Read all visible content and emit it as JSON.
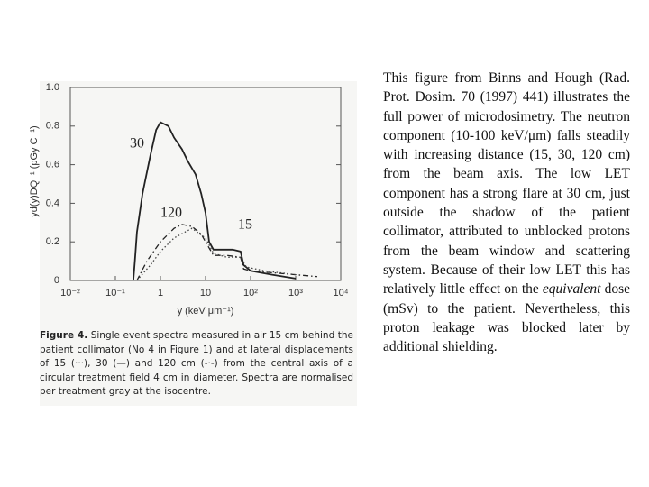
{
  "chart_data": {
    "type": "line",
    "y_label": "yd(y)DQ⁻¹ (pGy C⁻¹)",
    "x_label": "y (keV μm⁻¹)",
    "xscale": "log",
    "xlim": [
      0.01,
      10000
    ],
    "xticks": [
      {
        "value": 0.01,
        "label": "10⁻²"
      },
      {
        "value": 0.1,
        "label": "10⁻¹"
      },
      1,
      10,
      {
        "value": 100,
        "label": "10²"
      },
      {
        "value": 1000,
        "label": "10³"
      },
      {
        "value": 10000,
        "label": "10⁴"
      }
    ],
    "ylim": [
      0,
      1
    ],
    "yticks": [
      0,
      0.2,
      0.4,
      0.6,
      0.8,
      {
        "value": 1,
        "label": "1.0"
      }
    ],
    "series": [
      {
        "name": "30",
        "color": "#222222",
        "linestyle": "solid",
        "x": [
          0.25,
          0.27,
          0.3,
          0.4,
          0.6,
          0.8,
          1,
          1.5,
          2,
          3,
          4,
          6,
          8,
          10,
          12,
          15,
          20,
          40,
          60,
          70,
          100,
          300,
          1000
        ],
        "values": [
          0,
          0.1,
          0.25,
          0.45,
          0.65,
          0.78,
          0.82,
          0.8,
          0.74,
          0.68,
          0.62,
          0.55,
          0.45,
          0.35,
          0.2,
          0.16,
          0.16,
          0.16,
          0.15,
          0.08,
          0.05,
          0.03,
          0.01
        ]
      },
      {
        "name": "120",
        "color": "#222222",
        "linestyle": "dashdot",
        "x": [
          0.3,
          0.5,
          1,
          2,
          3,
          5,
          8,
          10,
          15,
          30,
          60,
          70,
          100,
          300,
          1000,
          3000
        ],
        "values": [
          0,
          0.1,
          0.2,
          0.27,
          0.29,
          0.28,
          0.24,
          0.2,
          0.13,
          0.13,
          0.12,
          0.06,
          0.05,
          0.04,
          0.03,
          0.02
        ]
      },
      {
        "name": "15",
        "color": "#444444",
        "linestyle": "dotted",
        "x": [
          0.3,
          0.6,
          1,
          2,
          5,
          10,
          15,
          30,
          60,
          80,
          200,
          1000
        ],
        "values": [
          0,
          0.08,
          0.15,
          0.22,
          0.27,
          0.22,
          0.14,
          0.12,
          0.12,
          0.07,
          0.05,
          0.03
        ]
      }
    ],
    "caption_lead": "Figure 4.",
    "caption": "Single event spectra measured in air 15 cm behind the patient collimator (No 4 in Figure 1) and at lateral displacements of 15 (···), 30 (—) and 120 cm (-·-) from the central axis of a circular treatment field 4 cm in diameter. Spectra are normalised per treatment gray at the isocentre."
  },
  "body": {
    "text_before": "This figure from Binns and Hough (Rad. Prot. Dosim. 70 (1997) 441) illustrates the full power of microdosimetry. The neutron component (10-100 keV/μm) falls steadily with increasing distance (15, 30, 120 cm) from the beam axis. The low LET component has a strong flare at 30 cm, just outside the shadow of the patient collimator, attributed to unblocked protons from the beam window and scattering system. Because of their low LET this has relatively little effect on the",
    "emphasis": "equivalent",
    "text_after": " dose (mSv) to the patient. Nevertheless, this proton leakage was blocked later by additional shielding."
  }
}
